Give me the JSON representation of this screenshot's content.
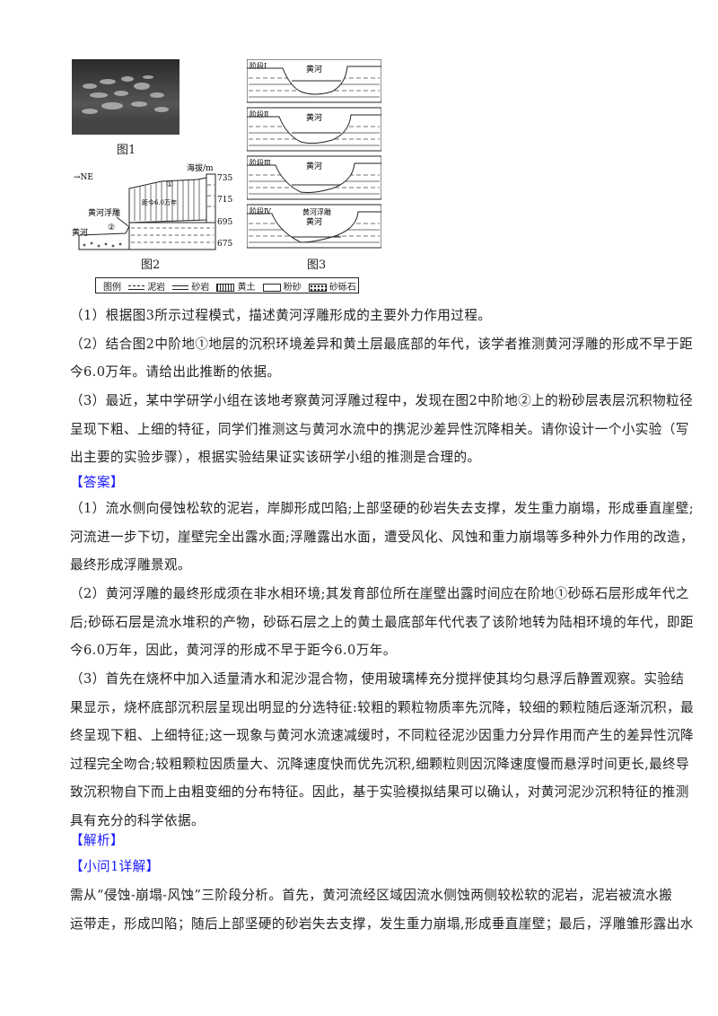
{
  "figures": {
    "fig1_caption": "图1",
    "fig2_caption": "图2",
    "fig3_caption": "图3",
    "fig2": {
      "direction": "→NE",
      "altitude_label": "海拔/m",
      "altitudes": [
        "735",
        "715",
        "695",
        "675"
      ],
      "terrace1": "①",
      "terrace2": "②",
      "relief_label": "黄河浮雕",
      "river_label": "黄河",
      "age_label": "距今6.0万年"
    },
    "fig3": {
      "stages": [
        "阶段Ⅰ",
        "阶段Ⅱ",
        "阶段Ⅲ",
        "阶段Ⅳ"
      ],
      "river_label": "黄河",
      "relief_label": "黄河浮雕"
    },
    "legend": {
      "title": "图例",
      "items": [
        "泥岩",
        "砂岩",
        "黄土",
        "粉砂",
        "砂砾石"
      ]
    }
  },
  "questions": [
    "（1）根据图3所示过程模式，描述黄河浮雕形成的主要外力作用过程。",
    "（2）结合图2中阶地①地层的沉积环境差异和黄土层最底部的年代，该学者推测黄河浮雕的形成不早于距",
    "今6.0万年。请给出此推断的依据。",
    "（3）最近，某中学研学小组在该地考察黄河浮雕过程中，发现在图2中阶地②上的粉砂层表层沉积物粒径",
    "呈现下粗、上细的特征，同学们推测这与黄河水流中的携泥沙差异性沉降相关。请你设计一个小实验（写",
    "出主要的实验步骤），根据实验结果证实该研学小组的推测是合理的。"
  ],
  "answer_heading": "【答案】",
  "answers": [
    "（1）流水侧向侵蚀松软的泥岩，岸脚形成凹陷;上部坚硬的砂岩失去支撑，发生重力崩塌，形成垂直崖壁;",
    "河流进一步下切，崖壁完全出露水面;浮雕露出水面，遭受风化、风蚀和重力崩塌等多种外力作用的改造，",
    "最终形成浮雕景观。",
    "（2）黄河浮雕的最终形成须在非水相环境;其发育部位所在崖壁出露时间应在阶地①砂砾石层形成年代之",
    "后;砂砾石层是流水堆积的产物，砂砾石层之上的黄土最底部年代代表了该阶地转为陆相环境的年代，即距",
    "今6.0万年，因此，黄河浮的形成不早于距今6.0万年。",
    "（3）首先在烧杯中加入适量清水和泥沙混合物，使用玻璃棒充分搅拌使其均匀悬浮后静置观察。实验结",
    "果显示，烧杯底部沉积层呈现出明显的分选特征:较粗的颗粒物质率先沉降，较细的颗粒随后逐渐沉积，最",
    "终呈现下粗、上细特征;这一现象与黄河水流速减缓时，不同粒径泥沙因重力分异作用而产生的差异性沉降",
    "过程完全吻合;较粗颗粒因质量大、沉降速度快而优先沉积,细颗粒则因沉降速度慢而悬浮时间更长,最终导",
    "致沉积物自下而上由粗变细的分布特征。因此，基于实验模拟结果可以确认，对黄河泥沙沉积特征的推测",
    "具有充分的科学依据。"
  ],
  "analysis_heading": "【解析】",
  "sub_heading": "【小问1详解】",
  "analysis": [
    "需从“侵蚀-崩塌-风蚀”三阶段分析。首先，黄河流经区域因流水侧蚀两侧较松软的泥岩，泥岩被流水搬",
    "运带走，形成凹陷；随后上部坚硬的砂岩失去支撑，发生重力崩塌,形成垂直崖壁；最后，浮雕雏形露出水"
  ],
  "colors": {
    "heading": "#1a1aff",
    "text": "#222222"
  }
}
